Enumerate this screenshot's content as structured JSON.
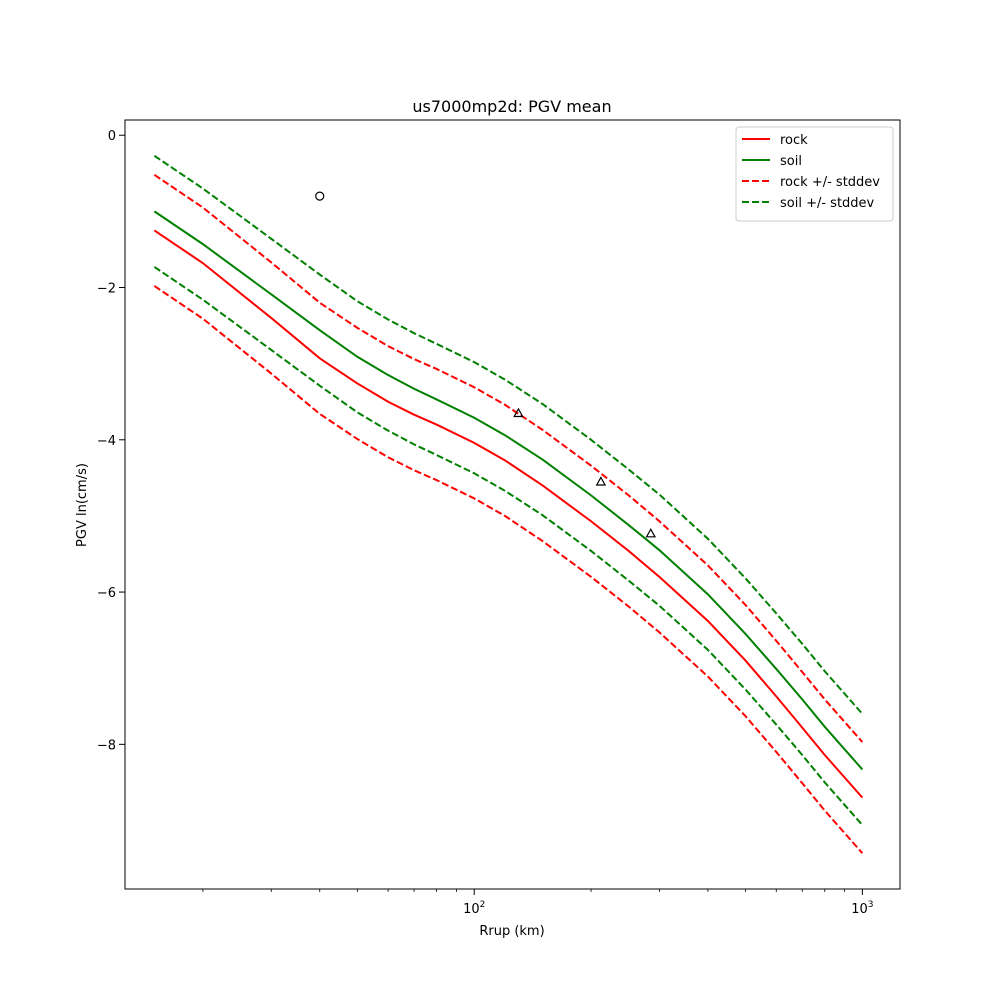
{
  "chart_data": {
    "type": "line",
    "title": "us7000mp2d: PGV mean",
    "xlabel": "Rrup (km)",
    "ylabel": "PGV ln(cm/s)",
    "xscale": "log",
    "xlim": [
      12.6,
      1250
    ],
    "ylim": [
      -9.9,
      0.2
    ],
    "x_ticks": [
      {
        "value": 100,
        "base": "10",
        "exp": "2"
      },
      {
        "value": 1000,
        "base": "10",
        "exp": "3"
      }
    ],
    "y_ticks": [
      {
        "value": 0,
        "label": "0"
      },
      {
        "value": -2,
        "label": "−2"
      },
      {
        "value": -4,
        "label": "−4"
      },
      {
        "value": -6,
        "label": "−6"
      },
      {
        "value": -8,
        "label": "−8"
      }
    ],
    "grid": false,
    "legend_position": "top-right",
    "x": [
      15,
      20,
      30,
      40,
      50,
      60,
      70,
      80,
      100,
      120,
      150,
      200,
      250,
      300,
      400,
      500,
      600,
      700,
      800,
      1000
    ],
    "series": [
      {
        "name": "rock",
        "color": "#ff0000",
        "style": "solid",
        "legend": true,
        "values": [
          -1.25,
          -1.68,
          -2.4,
          -2.93,
          -3.26,
          -3.5,
          -3.67,
          -3.8,
          -4.04,
          -4.27,
          -4.6,
          -5.07,
          -5.46,
          -5.8,
          -6.38,
          -6.9,
          -7.37,
          -7.78,
          -8.14,
          -8.7
        ]
      },
      {
        "name": "soil",
        "color": "#008000",
        "style": "solid",
        "legend": true,
        "values": [
          -1.0,
          -1.43,
          -2.09,
          -2.56,
          -2.91,
          -3.15,
          -3.33,
          -3.47,
          -3.71,
          -3.94,
          -4.26,
          -4.73,
          -5.12,
          -5.45,
          -6.03,
          -6.55,
          -7.01,
          -7.41,
          -7.77,
          -8.33
        ]
      },
      {
        "name": "rock +/- stddev",
        "color": "#ff0000",
        "style": "dashed",
        "legend": true,
        "values": [
          -0.52,
          -0.95,
          -1.67,
          -2.2,
          -2.53,
          -2.77,
          -2.94,
          -3.07,
          -3.31,
          -3.54,
          -3.87,
          -4.34,
          -4.73,
          -5.07,
          -5.65,
          -6.17,
          -6.64,
          -7.05,
          -7.41,
          -7.97
        ]
      },
      {
        "name": "rock +/- stddev",
        "color": "#ff0000",
        "style": "dashed",
        "legend": false,
        "values": [
          -1.98,
          -2.41,
          -3.13,
          -3.66,
          -3.99,
          -4.23,
          -4.4,
          -4.53,
          -4.77,
          -5.0,
          -5.33,
          -5.8,
          -6.19,
          -6.53,
          -7.11,
          -7.63,
          -8.1,
          -8.51,
          -8.87,
          -9.43
        ]
      },
      {
        "name": "soil +/- stddev",
        "color": "#008000",
        "style": "dashed",
        "legend": true,
        "values": [
          -0.27,
          -0.7,
          -1.36,
          -1.83,
          -2.18,
          -2.42,
          -2.6,
          -2.74,
          -2.98,
          -3.21,
          -3.53,
          -4.0,
          -4.39,
          -4.72,
          -5.3,
          -5.82,
          -6.28,
          -6.68,
          -7.04,
          -7.6
        ]
      },
      {
        "name": "soil +/- stddev",
        "color": "#008000",
        "style": "dashed",
        "legend": false,
        "values": [
          -1.73,
          -2.16,
          -2.82,
          -3.29,
          -3.64,
          -3.88,
          -4.06,
          -4.2,
          -4.44,
          -4.67,
          -4.99,
          -5.46,
          -5.85,
          -6.18,
          -6.76,
          -7.28,
          -7.74,
          -8.14,
          -8.5,
          -9.06
        ]
      }
    ],
    "markers": [
      {
        "shape": "circle",
        "x": 40,
        "y": -0.8
      },
      {
        "shape": "triangle",
        "x": 130,
        "y": -3.65
      },
      {
        "shape": "triangle",
        "x": 212,
        "y": -4.55
      },
      {
        "shape": "triangle",
        "x": 285,
        "y": -5.23
      }
    ]
  }
}
